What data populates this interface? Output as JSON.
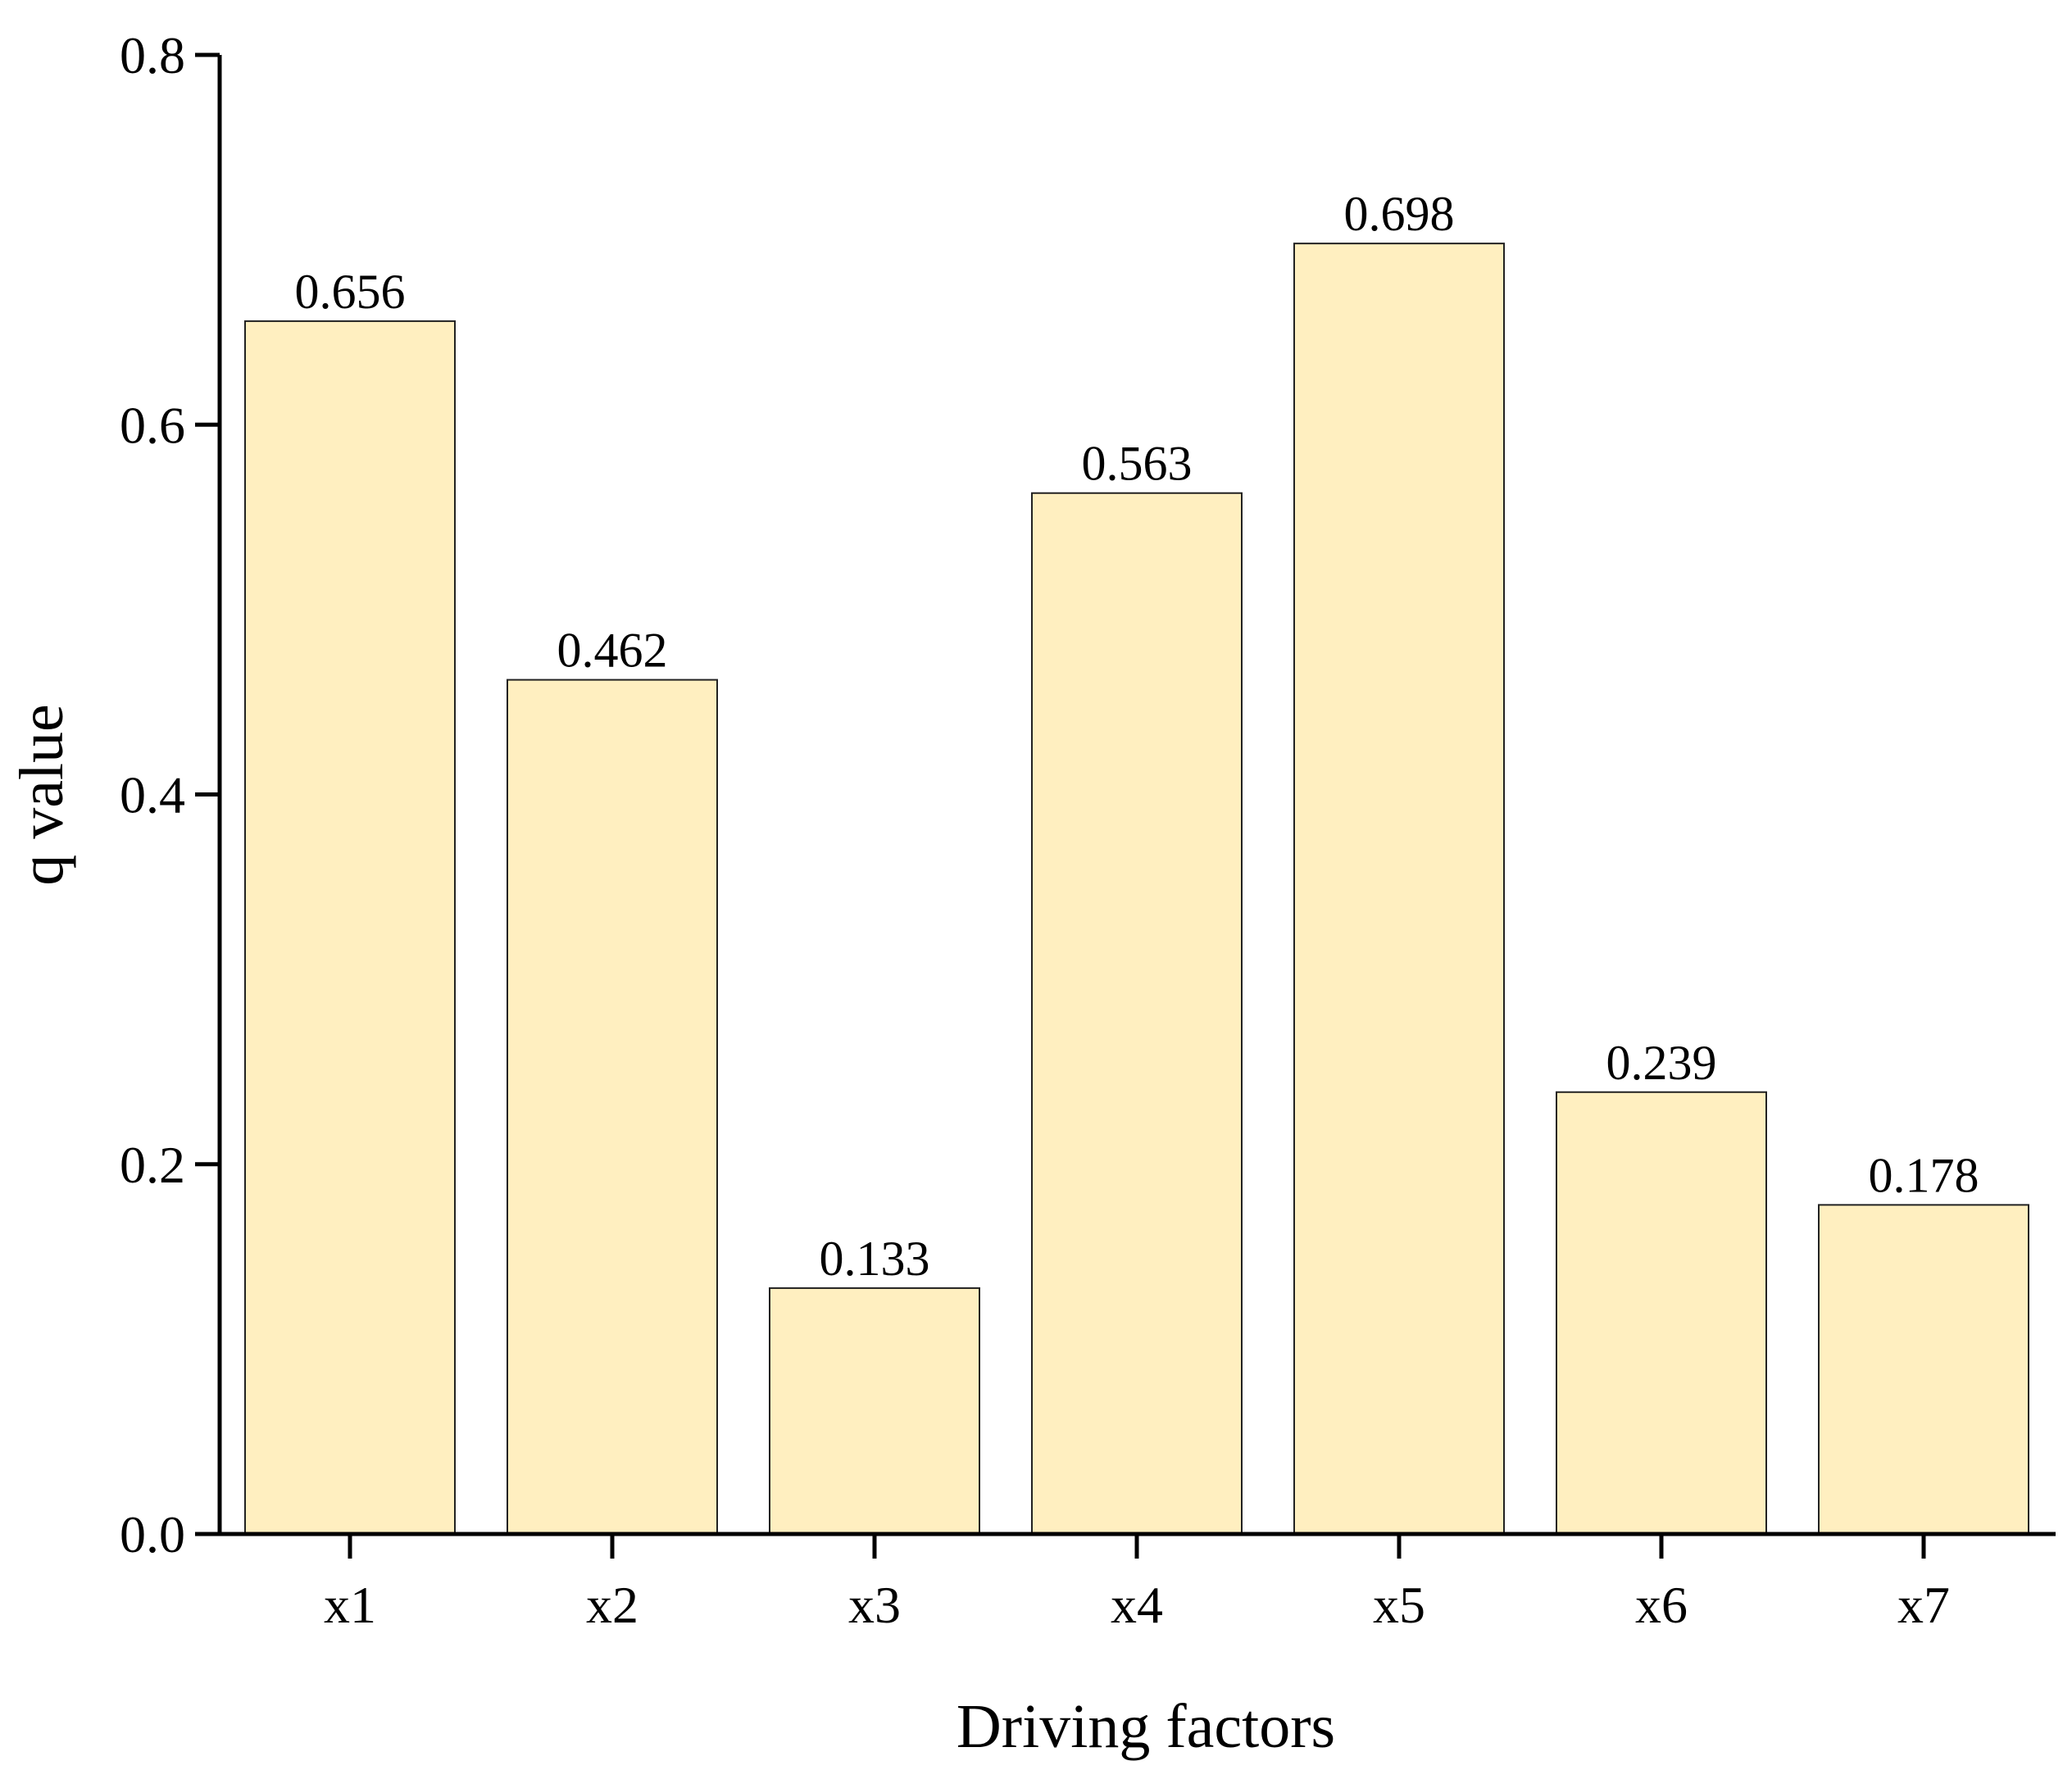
{
  "chart_data": {
    "type": "bar",
    "categories": [
      "x1",
      "x2",
      "x3",
      "x4",
      "x5",
      "x6",
      "x7"
    ],
    "values": [
      0.656,
      0.462,
      0.133,
      0.563,
      0.698,
      0.239,
      0.178
    ],
    "value_labels": [
      "0.656",
      "0.462",
      "0.133",
      "0.563",
      "0.698",
      "0.239",
      "0.178"
    ],
    "title": "",
    "xlabel": "Driving factors",
    "ylabel": "q value",
    "ylim": [
      0,
      0.8
    ],
    "yticks": [
      "0.0",
      "0.2",
      "0.4",
      "0.6",
      "0.8"
    ],
    "grid": false,
    "legend": "none",
    "bar_color": "#FFEFC0",
    "bar_edge_color": "#222222"
  }
}
